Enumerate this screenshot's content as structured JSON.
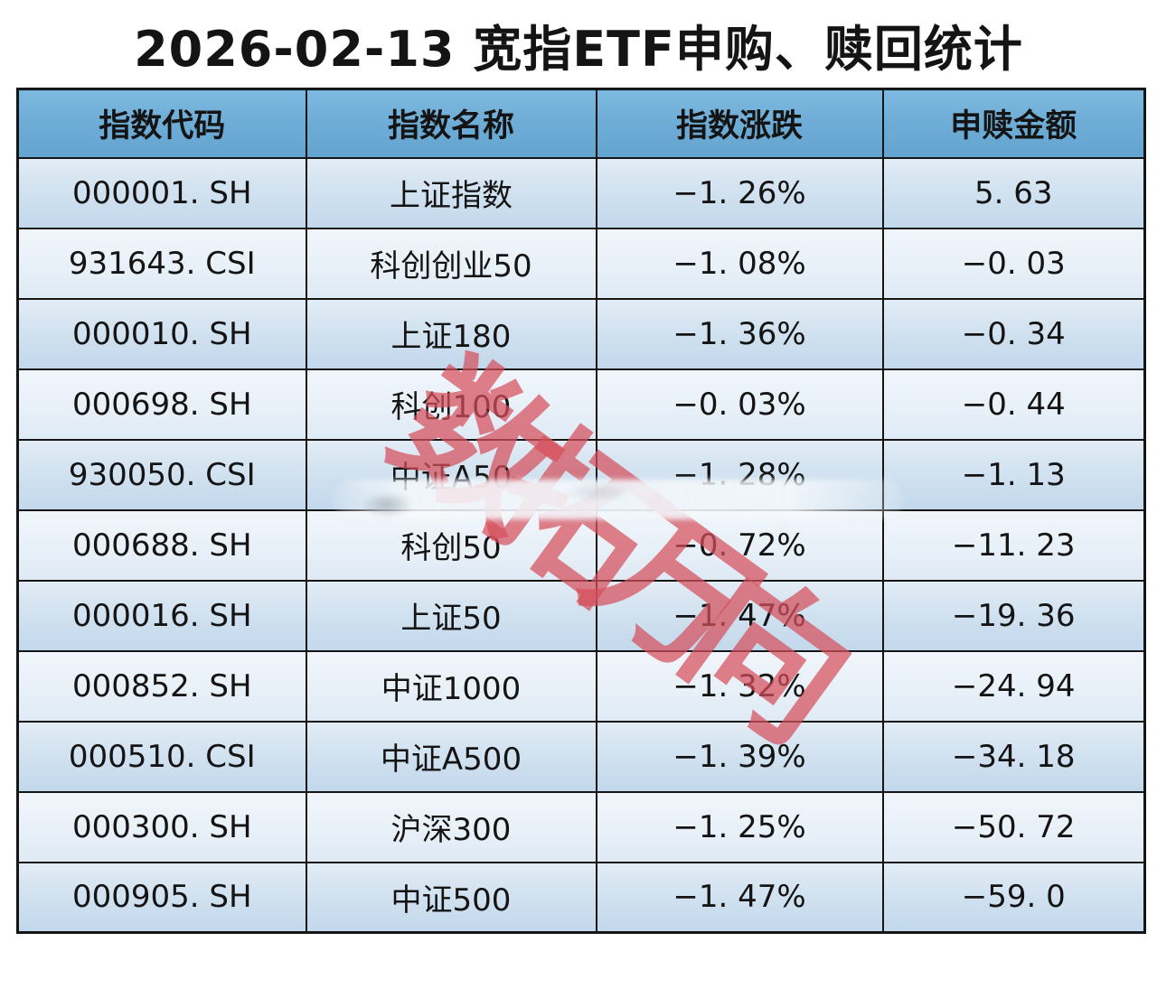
{
  "title": "2026-02-13 宽指ETF申购、赎回统计",
  "watermark": "数拓万向",
  "table": {
    "headers": [
      "指数代码",
      "指数名称",
      "指数涨跌",
      "申赎金额"
    ],
    "rows": [
      [
        "000001. SH",
        "上证指数",
        "−1. 26%",
        "5. 63"
      ],
      [
        "931643. CSI",
        "科创创业50",
        "−1. 08%",
        "−0. 03"
      ],
      [
        "000010. SH",
        "上证180",
        "−1. 36%",
        "−0. 34"
      ],
      [
        "000698. SH",
        "科创100",
        "−0. 03%",
        "−0. 44"
      ],
      [
        "930050. CSI",
        "中证A50",
        "−1. 28%",
        "−1. 13"
      ],
      [
        "000688. SH",
        "科创50",
        "−0. 72%",
        "−11. 23"
      ],
      [
        "000016. SH",
        "上证50",
        "−1. 47%",
        "−19. 36"
      ],
      [
        "000852. SH",
        "中证1000",
        "−1. 32%",
        "−24. 94"
      ],
      [
        "000510. CSI",
        "中证A500",
        "−1. 39%",
        "−34. 18"
      ],
      [
        "000300. SH",
        "沪深300",
        "−1. 25%",
        "−50. 72"
      ],
      [
        "000905. SH",
        "中证500",
        "−1. 47%",
        "−59. 0"
      ]
    ]
  },
  "chart_data": {
    "type": "table",
    "title": "2026-02-13 宽指ETF申购、赎回统计",
    "columns": [
      "指数代码",
      "指数名称",
      "指数涨跌",
      "申赎金额"
    ],
    "rows": [
      [
        "000001.SH",
        "上证指数",
        -1.26,
        5.63
      ],
      [
        "931643.CSI",
        "科创创业50",
        -1.08,
        -0.03
      ],
      [
        "000010.SH",
        "上证180",
        -1.36,
        -0.34
      ],
      [
        "000698.SH",
        "科创100",
        -0.03,
        -0.44
      ],
      [
        "930050.CSI",
        "中证A50",
        -1.28,
        -1.13
      ],
      [
        "000688.SH",
        "科创50",
        -0.72,
        -11.23
      ],
      [
        "000016.SH",
        "上证50",
        -1.47,
        -19.36
      ],
      [
        "000852.SH",
        "中证1000",
        -1.32,
        -24.94
      ],
      [
        "000510.CSI",
        "中证A500",
        -1.39,
        -34.18
      ],
      [
        "000300.SH",
        "沪深300",
        -1.25,
        -50.72
      ],
      [
        "000905.SH",
        "中证500",
        -1.47,
        -59.0
      ]
    ]
  },
  "colors": {
    "header_blue": "#6cabd5",
    "row_odd_blue": "#c9dcee",
    "row_even_blue": "#e9f1f8",
    "border_black": "#151515",
    "watermark_red": "#d54f5c",
    "text": "#141414"
  }
}
